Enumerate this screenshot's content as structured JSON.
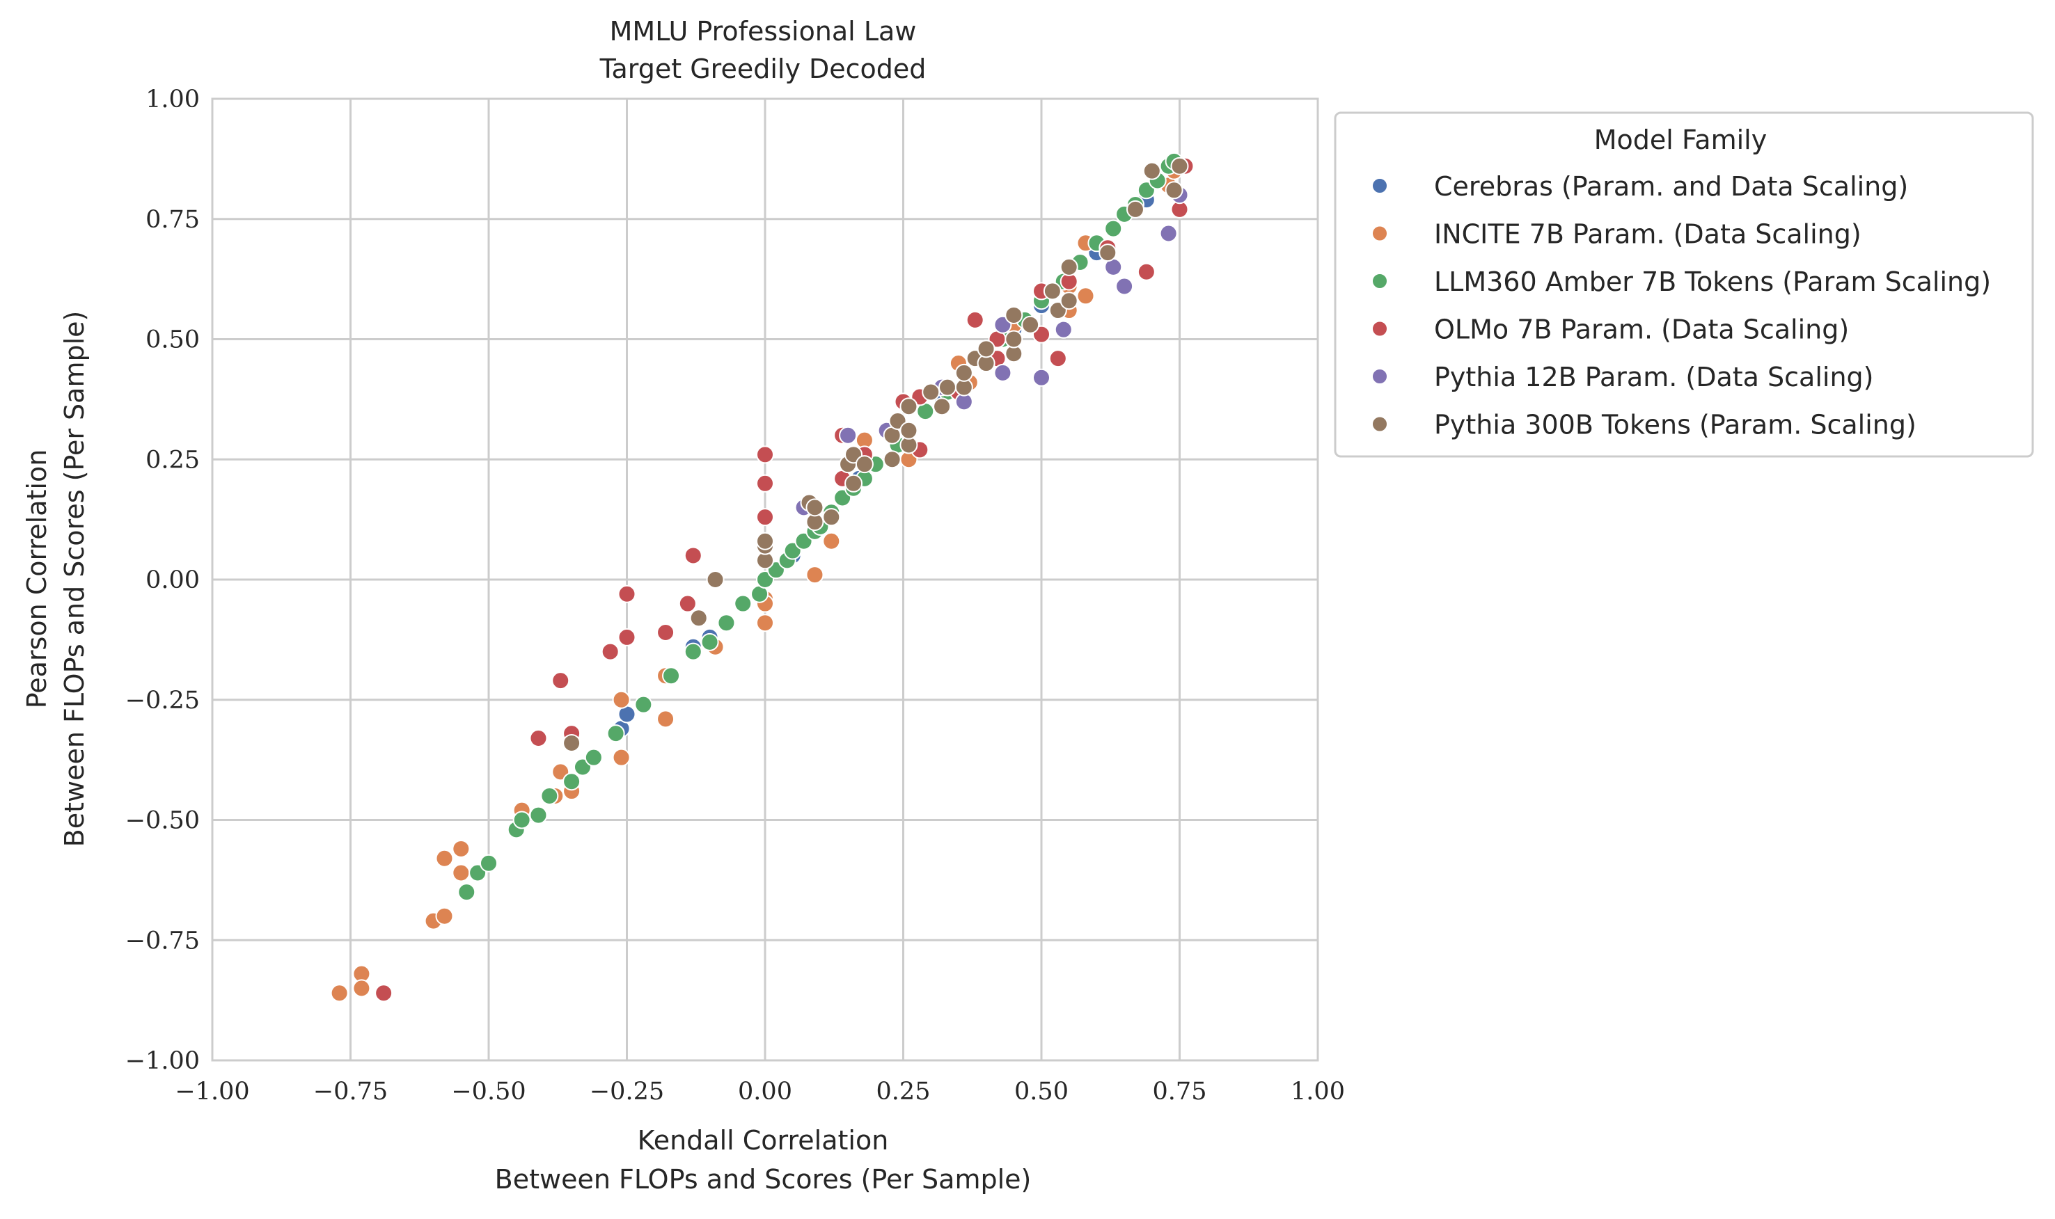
{
  "chart_data": {
    "type": "scatter",
    "title": [
      "MMLU Professional Law",
      "Target Greedily Decoded"
    ],
    "xlabel": [
      "Kendall Correlation",
      "Between FLOPs and Scores (Per Sample)"
    ],
    "ylabel": [
      "Pearson Correlation",
      "Between FLOPs and Scores (Per Sample)"
    ],
    "xlim": [
      -1,
      1
    ],
    "ylim": [
      -1,
      1
    ],
    "xticks": [
      "−1.00",
      "−0.75",
      "−0.50",
      "−0.25",
      "0.00",
      "0.25",
      "0.50",
      "0.75",
      "1.00"
    ],
    "yticks": [
      "−1.00",
      "−0.75",
      "−0.50",
      "−0.25",
      "0.00",
      "0.25",
      "0.50",
      "0.75",
      "1.00"
    ],
    "grid": true,
    "legend": {
      "title": "Model Family",
      "placement": "outside-right-top"
    },
    "series": [
      {
        "name": "Cerebras (Param. and Data Scaling)",
        "color": "#4c72b0",
        "points": [
          [
            -0.26,
            -0.31
          ],
          [
            -0.25,
            -0.28
          ],
          [
            -0.13,
            -0.14
          ],
          [
            -0.1,
            -0.12
          ],
          [
            0.05,
            0.05
          ],
          [
            0.17,
            0.21
          ],
          [
            0.32,
            0.38
          ],
          [
            0.45,
            0.52
          ],
          [
            0.5,
            0.57
          ],
          [
            0.6,
            0.68
          ],
          [
            0.69,
            0.79
          ]
        ]
      },
      {
        "name": "INCITE 7B Param. (Data Scaling)",
        "color": "#dd8452",
        "points": [
          [
            -0.77,
            -0.86
          ],
          [
            -0.73,
            -0.82
          ],
          [
            -0.73,
            -0.85
          ],
          [
            -0.6,
            -0.71
          ],
          [
            -0.58,
            -0.7
          ],
          [
            -0.58,
            -0.58
          ],
          [
            -0.55,
            -0.56
          ],
          [
            -0.55,
            -0.61
          ],
          [
            -0.44,
            -0.48
          ],
          [
            -0.38,
            -0.45
          ],
          [
            -0.37,
            -0.4
          ],
          [
            -0.35,
            -0.44
          ],
          [
            -0.26,
            -0.25
          ],
          [
            -0.26,
            -0.37
          ],
          [
            -0.18,
            -0.29
          ],
          [
            -0.18,
            -0.2
          ],
          [
            -0.09,
            -0.14
          ],
          [
            0.0,
            -0.04
          ],
          [
            0.0,
            -0.05
          ],
          [
            0.0,
            -0.09
          ],
          [
            0.09,
            0.01
          ],
          [
            0.12,
            0.08
          ],
          [
            0.18,
            0.29
          ],
          [
            0.26,
            0.25
          ],
          [
            0.35,
            0.45
          ],
          [
            0.37,
            0.41
          ],
          [
            0.45,
            0.53
          ],
          [
            0.55,
            0.56
          ],
          [
            0.55,
            0.61
          ],
          [
            0.58,
            0.59
          ],
          [
            0.58,
            0.7
          ],
          [
            0.73,
            0.82
          ],
          [
            0.74,
            0.85
          ]
        ]
      },
      {
        "name": "LLM360 Amber 7B Tokens (Param Scaling)",
        "color": "#55a868",
        "points": [
          [
            -0.54,
            -0.65
          ],
          [
            -0.52,
            -0.61
          ],
          [
            -0.5,
            -0.59
          ],
          [
            -0.45,
            -0.52
          ],
          [
            -0.44,
            -0.5
          ],
          [
            -0.41,
            -0.49
          ],
          [
            -0.39,
            -0.45
          ],
          [
            -0.35,
            -0.42
          ],
          [
            -0.33,
            -0.39
          ],
          [
            -0.31,
            -0.37
          ],
          [
            -0.27,
            -0.32
          ],
          [
            -0.22,
            -0.26
          ],
          [
            -0.17,
            -0.2
          ],
          [
            -0.13,
            -0.15
          ],
          [
            -0.1,
            -0.13
          ],
          [
            -0.07,
            -0.09
          ],
          [
            -0.04,
            -0.05
          ],
          [
            -0.01,
            -0.03
          ],
          [
            0.0,
            0.0
          ],
          [
            0.02,
            0.02
          ],
          [
            0.04,
            0.04
          ],
          [
            0.05,
            0.06
          ],
          [
            0.07,
            0.08
          ],
          [
            0.09,
            0.1
          ],
          [
            0.1,
            0.11
          ],
          [
            0.12,
            0.14
          ],
          [
            0.14,
            0.17
          ],
          [
            0.16,
            0.19
          ],
          [
            0.18,
            0.21
          ],
          [
            0.2,
            0.24
          ],
          [
            0.24,
            0.28
          ],
          [
            0.26,
            0.31
          ],
          [
            0.29,
            0.35
          ],
          [
            0.33,
            0.39
          ],
          [
            0.36,
            0.43
          ],
          [
            0.4,
            0.46
          ],
          [
            0.43,
            0.5
          ],
          [
            0.47,
            0.54
          ],
          [
            0.5,
            0.58
          ],
          [
            0.54,
            0.62
          ],
          [
            0.57,
            0.66
          ],
          [
            0.6,
            0.7
          ],
          [
            0.63,
            0.73
          ],
          [
            0.65,
            0.76
          ],
          [
            0.67,
            0.78
          ],
          [
            0.69,
            0.81
          ],
          [
            0.71,
            0.83
          ],
          [
            0.73,
            0.86
          ],
          [
            0.74,
            0.87
          ]
        ]
      },
      {
        "name": "OLMo 7B Param. (Data Scaling)",
        "color": "#c44e52",
        "points": [
          [
            -0.69,
            -0.86
          ],
          [
            -0.41,
            -0.33
          ],
          [
            -0.37,
            -0.21
          ],
          [
            -0.35,
            -0.32
          ],
          [
            -0.28,
            -0.15
          ],
          [
            -0.25,
            -0.12
          ],
          [
            -0.25,
            -0.03
          ],
          [
            -0.18,
            -0.11
          ],
          [
            -0.14,
            -0.05
          ],
          [
            -0.13,
            0.05
          ],
          [
            0.0,
            0.13
          ],
          [
            0.0,
            0.2
          ],
          [
            0.0,
            0.26
          ],
          [
            0.14,
            0.21
          ],
          [
            0.14,
            0.3
          ],
          [
            0.18,
            0.26
          ],
          [
            0.25,
            0.37
          ],
          [
            0.28,
            0.27
          ],
          [
            0.28,
            0.38
          ],
          [
            0.35,
            0.39
          ],
          [
            0.38,
            0.54
          ],
          [
            0.42,
            0.46
          ],
          [
            0.42,
            0.5
          ],
          [
            0.5,
            0.51
          ],
          [
            0.5,
            0.6
          ],
          [
            0.53,
            0.46
          ],
          [
            0.55,
            0.62
          ],
          [
            0.62,
            0.69
          ],
          [
            0.69,
            0.64
          ],
          [
            0.75,
            0.77
          ],
          [
            0.76,
            0.86
          ]
        ]
      },
      {
        "name": "Pythia 12B Param. (Data Scaling)",
        "color": "#8172b3",
        "points": [
          [
            0.07,
            0.15
          ],
          [
            0.15,
            0.3
          ],
          [
            0.22,
            0.31
          ],
          [
            0.32,
            0.4
          ],
          [
            0.36,
            0.37
          ],
          [
            0.43,
            0.43
          ],
          [
            0.43,
            0.53
          ],
          [
            0.5,
            0.42
          ],
          [
            0.54,
            0.52
          ],
          [
            0.63,
            0.65
          ],
          [
            0.65,
            0.61
          ],
          [
            0.73,
            0.72
          ],
          [
            0.75,
            0.8
          ]
        ]
      },
      {
        "name": "Pythia 300B Tokens (Param. Scaling)",
        "color": "#937860",
        "points": [
          [
            -0.35,
            -0.34
          ],
          [
            -0.12,
            -0.08
          ],
          [
            -0.09,
            0.0
          ],
          [
            0.0,
            0.04
          ],
          [
            0.0,
            0.07
          ],
          [
            0.0,
            0.08
          ],
          [
            0.08,
            0.16
          ],
          [
            0.09,
            0.12
          ],
          [
            0.09,
            0.15
          ],
          [
            0.12,
            0.13
          ],
          [
            0.15,
            0.24
          ],
          [
            0.16,
            0.2
          ],
          [
            0.16,
            0.26
          ],
          [
            0.18,
            0.24
          ],
          [
            0.23,
            0.25
          ],
          [
            0.23,
            0.3
          ],
          [
            0.24,
            0.33
          ],
          [
            0.26,
            0.28
          ],
          [
            0.26,
            0.31
          ],
          [
            0.26,
            0.36
          ],
          [
            0.3,
            0.39
          ],
          [
            0.32,
            0.36
          ],
          [
            0.33,
            0.4
          ],
          [
            0.36,
            0.4
          ],
          [
            0.36,
            0.43
          ],
          [
            0.38,
            0.46
          ],
          [
            0.4,
            0.45
          ],
          [
            0.4,
            0.48
          ],
          [
            0.45,
            0.47
          ],
          [
            0.45,
            0.5
          ],
          [
            0.45,
            0.55
          ],
          [
            0.48,
            0.53
          ],
          [
            0.52,
            0.6
          ],
          [
            0.53,
            0.56
          ],
          [
            0.55,
            0.58
          ],
          [
            0.55,
            0.65
          ],
          [
            0.62,
            0.68
          ],
          [
            0.67,
            0.77
          ],
          [
            0.7,
            0.85
          ],
          [
            0.74,
            0.81
          ],
          [
            0.75,
            0.86
          ]
        ]
      }
    ]
  }
}
